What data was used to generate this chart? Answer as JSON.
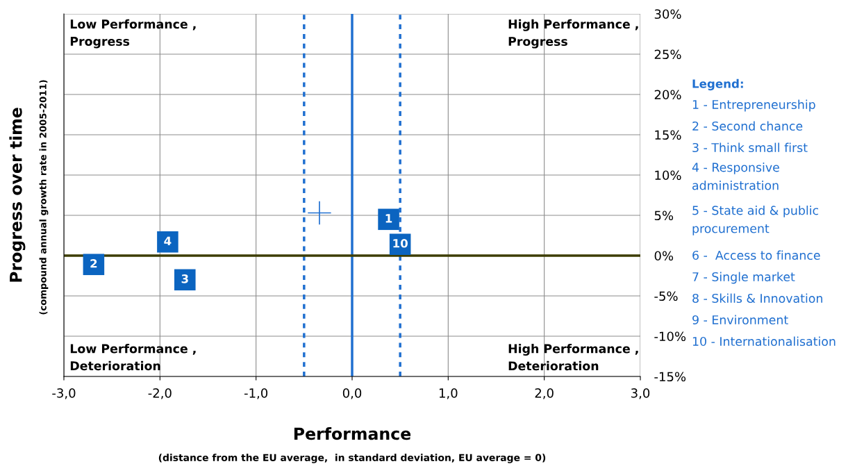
{
  "chart_data": {
    "type": "scatter",
    "xlabel": "Performance",
    "ylabel": "Progress over time",
    "series": [
      {
        "name": "4",
        "color": "#0b64c0",
        "marker": "square",
        "x": [
          -1.92
        ],
        "values": [
          1.7
        ]
      },
      {
        "name": "2",
        "color": "#0b64c0",
        "marker": "square",
        "x": [
          -2.69
        ],
        "values": [
          -1.1
        ]
      },
      {
        "name": "3",
        "color": "#0b64c0",
        "marker": "square",
        "x": [
          -1.74
        ],
        "values": [
          -3.0
        ]
      },
      {
        "name": "1",
        "color": "#0b64c0",
        "marker": "square",
        "x": [
          0.38
        ],
        "values": [
          4.5
        ]
      },
      {
        "name": "10",
        "color": "#0b64c0",
        "marker": "square",
        "x": [
          0.5
        ],
        "values": [
          1.4
        ]
      },
      {
        "color": "#1f6fd0",
        "marker": "cross",
        "x": [
          -0.34
        ],
        "values": [
          5.3
        ]
      }
    ],
    "xlim": [
      -3,
      3
    ],
    "xticks": [
      {
        "value": -3,
        "label": "-3,0"
      },
      {
        "value": -2,
        "label": "-2,0"
      },
      {
        "value": -1,
        "label": "-1,0"
      },
      {
        "value": 0,
        "label": "0,0"
      },
      {
        "value": 1,
        "label": "1,0"
      },
      {
        "value": 2,
        "label": "2,0"
      },
      {
        "value": 3,
        "label": "3,0"
      }
    ],
    "ylim": [
      -15,
      30
    ],
    "yticks": [
      {
        "value": -15,
        "label": "-15%"
      },
      {
        "value": -10,
        "label": "-10%"
      },
      {
        "value": -5,
        "label": "-5%"
      },
      {
        "value": 0,
        "label": "0%"
      },
      {
        "value": 5,
        "label": "5%"
      },
      {
        "value": 10,
        "label": "10%"
      },
      {
        "value": 15,
        "label": "15%"
      },
      {
        "value": 20,
        "label": "20%"
      },
      {
        "value": 25,
        "label": "25%"
      },
      {
        "value": 30,
        "label": "30%"
      }
    ],
    "grid": true,
    "ref_lines": [
      {
        "axis": "x",
        "value": 0,
        "color": "#1f6fd0",
        "line_style": "solid"
      },
      {
        "axis": "x",
        "value": -0.5,
        "color": "#1f6fd0",
        "line_style": "dotted"
      },
      {
        "axis": "x",
        "value": 0.5,
        "color": "#1f6fd0",
        "line_style": "dotted"
      },
      {
        "axis": "y",
        "value": 0,
        "color": "#3d3d00",
        "line_style": "solid"
      }
    ],
    "annotations": [
      "Low Performance ,\nProgress",
      "High Performance ,\nProgress",
      "Low Performance ,\nDeterioration",
      "High Performance ,\nDeterioration",
      "(compound annual growth rate in 2005-2011)",
      "(distance from the EU average,  in standard deviation, EU average = 0)",
      "Legend:",
      "1 - Entrepreneurship",
      "2 - Second chance",
      "3 - Think small first",
      "4 - Responsive\nadministration",
      "5 - State aid & public\nprocurement",
      "6 -  Access to finance",
      "7 - Single market",
      "8 - Skills & Innovation",
      "9 - Environment",
      "10 - Internationalisation"
    ]
  }
}
